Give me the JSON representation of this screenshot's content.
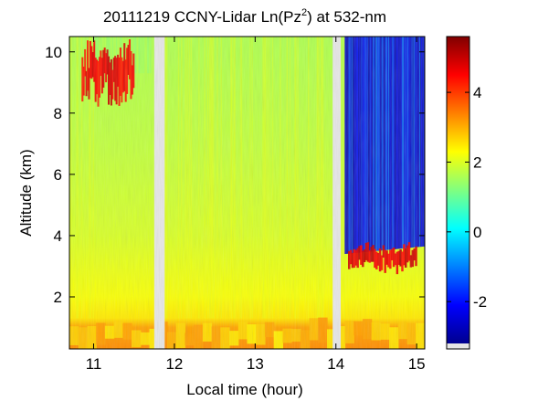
{
  "chart_data": {
    "type": "heatmap",
    "title": {
      "main": "20111219 CCNY-Lidar Ln(Pz",
      "superscript": "2",
      "tail": ") at 532-nm"
    },
    "xlabel": "Local time (hour)",
    "ylabel": "Altitude (km)",
    "xlim": [
      10.7,
      15.1
    ],
    "ylim": [
      0.3,
      10.5
    ],
    "x_ticks": [
      11,
      12,
      13,
      14,
      15
    ],
    "y_ticks": [
      2,
      4,
      6,
      8,
      10
    ],
    "colorbar": {
      "range": [
        -3.2,
        5.6
      ],
      "ticks": [
        -2,
        0,
        2,
        4
      ],
      "colormap": "jet",
      "colors": [
        "#00008f",
        "#0000ff",
        "#0080ff",
        "#00ffff",
        "#80ff80",
        "#ffff00",
        "#ff8000",
        "#ff0000",
        "#800000"
      ],
      "no_data_color": "#e6e6e6"
    },
    "no_data_gaps_hours": [
      [
        11.75,
        11.88
      ],
      [
        13.96,
        14.06
      ]
    ],
    "features": [
      {
        "label": "cirrus",
        "x": [
          10.85,
          11.5
        ],
        "y": [
          8.5,
          10.2
        ],
        "value": 5.0
      },
      {
        "label": "cloud base",
        "x": [
          14.15,
          15.0
        ],
        "y": [
          2.9,
          3.7
        ],
        "value": 5.2
      },
      {
        "label": "boundary layer",
        "x": [
          10.7,
          15.1
        ],
        "y": [
          0.3,
          1.2
        ],
        "value": 3.2
      }
    ],
    "grid": false
  }
}
